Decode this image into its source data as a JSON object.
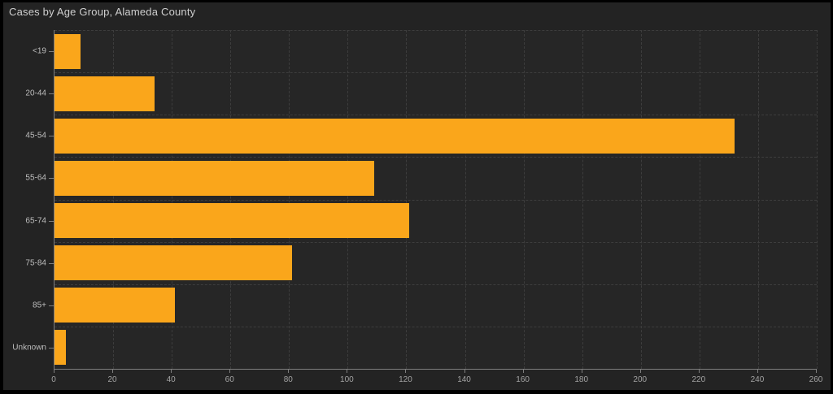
{
  "title": "Cases by Age Group, Alameda County",
  "colors": {
    "bar": "#FAA61B",
    "page_background": "#232323",
    "plot_background": "#262626",
    "gridline": "#3d3d3d",
    "axis_line": "#7f7f7f",
    "title_text": "#cfcfcf",
    "tick_text": "#a3a3a3"
  },
  "chart_data": {
    "type": "bar",
    "orientation": "horizontal",
    "title": "Cases by Age Group, Alameda County",
    "categories": [
      "<19",
      "20-44",
      "45-54",
      "55-64",
      "65-74",
      "75-84",
      "85+",
      "Unknown"
    ],
    "values": [
      9,
      34,
      232,
      109,
      121,
      81,
      41,
      4
    ],
    "xlabel": "",
    "ylabel": "",
    "xlim": [
      0,
      260
    ],
    "x_ticks": [
      0,
      20,
      40,
      60,
      80,
      100,
      120,
      140,
      160,
      180,
      200,
      220,
      240,
      260
    ],
    "grid": true,
    "legend": false
  }
}
